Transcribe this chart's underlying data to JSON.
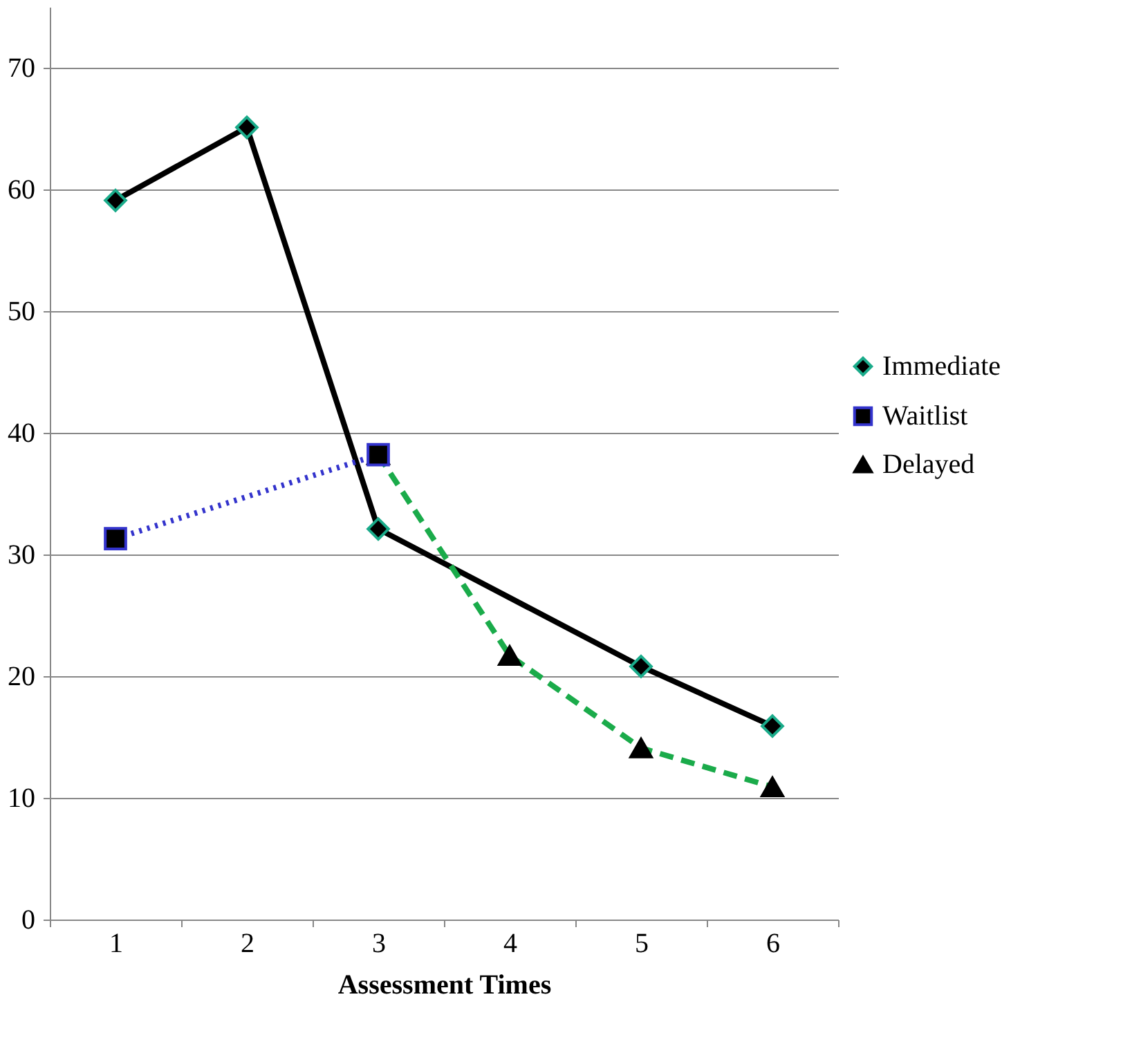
{
  "chart_data": {
    "type": "line",
    "xlabel": "Assessment Times",
    "categories": [
      "1",
      "2",
      "3",
      "4",
      "5",
      "6"
    ],
    "series": [
      {
        "name": "Immediate",
        "color": "#000000",
        "marker": "diamond",
        "line_style": "solid",
        "values": [
          59.1,
          65.1,
          32.1,
          null,
          20.8,
          15.9
        ]
      },
      {
        "name": "Waitlist",
        "color": "#3333cc",
        "marker": "square",
        "line_style": "dotted",
        "values": [
          31.3,
          null,
          38.2,
          null,
          null,
          null
        ]
      },
      {
        "name": "Delayed",
        "color": "#1aab4a",
        "marker": "triangle",
        "line_style": "dashed",
        "values": [
          null,
          null,
          38.2,
          21.7,
          14.1,
          10.9
        ]
      }
    ],
    "ylim": [
      0,
      75
    ],
    "yticks": [
      0,
      10,
      20,
      30,
      40,
      50,
      60,
      70
    ],
    "grid": "y",
    "legend": "right"
  }
}
